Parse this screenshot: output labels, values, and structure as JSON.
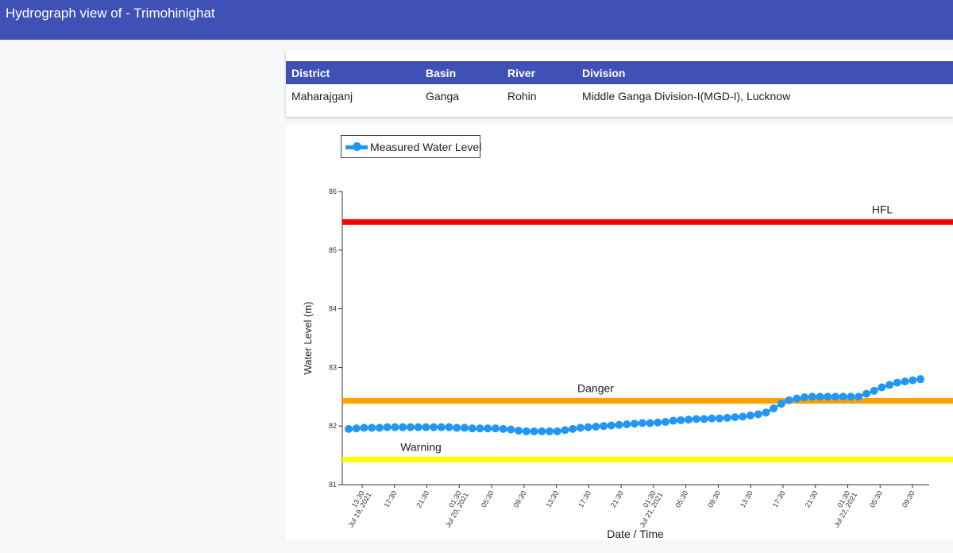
{
  "header": {
    "title": "Hydrograph view of - Trimohinighat"
  },
  "info_table": {
    "columns": [
      "District",
      "Basin",
      "River",
      "Division"
    ],
    "row": [
      "Maharajganj",
      "Ganga",
      "Rohin",
      "Middle Ganga Division-I(MGD-I), Lucknow"
    ]
  },
  "legend": {
    "label": "Measured Water Level"
  },
  "chart_data": {
    "type": "line",
    "ylabel": "Water Level (m)",
    "xlabel": "Date / Time",
    "ylim": [
      81,
      86
    ],
    "yticks": [
      81,
      82,
      83,
      84,
      85,
      86
    ],
    "xticks": [
      {
        "time": "13:30",
        "date": "Jul 19, 2021"
      },
      {
        "time": "17:30",
        "date": ""
      },
      {
        "time": "21:30",
        "date": ""
      },
      {
        "time": "01:30",
        "date": "Jul 20, 2021"
      },
      {
        "time": "05:30",
        "date": ""
      },
      {
        "time": "09:30",
        "date": ""
      },
      {
        "time": "13:30",
        "date": ""
      },
      {
        "time": "17:30",
        "date": ""
      },
      {
        "time": "21:30",
        "date": ""
      },
      {
        "time": "01:30",
        "date": "Jul 21, 2021"
      },
      {
        "time": "05:30",
        "date": ""
      },
      {
        "time": "09:30",
        "date": ""
      },
      {
        "time": "13:30",
        "date": ""
      },
      {
        "time": "17:30",
        "date": ""
      },
      {
        "time": "21:30",
        "date": ""
      },
      {
        "time": "01:30",
        "date": "Jul 22, 2021"
      },
      {
        "time": "05:30",
        "date": ""
      },
      {
        "time": "09:30",
        "date": ""
      }
    ],
    "series": [
      {
        "name": "Measured Water Level",
        "color": "#2196f3",
        "values": [
          81.95,
          81.96,
          81.97,
          81.97,
          81.97,
          81.98,
          81.98,
          81.98,
          81.98,
          81.98,
          81.98,
          81.98,
          81.98,
          81.98,
          81.97,
          81.97,
          81.96,
          81.96,
          81.96,
          81.96,
          81.95,
          81.94,
          81.92,
          81.91,
          81.91,
          81.91,
          81.91,
          81.91,
          81.93,
          81.95,
          81.97,
          81.98,
          81.99,
          82.0,
          82.01,
          82.02,
          82.03,
          82.04,
          82.05,
          82.05,
          82.06,
          82.07,
          82.09,
          82.1,
          82.11,
          82.12,
          82.12,
          82.13,
          82.13,
          82.14,
          82.15,
          82.16,
          82.18,
          82.2,
          82.23,
          82.3,
          82.38,
          82.44,
          82.47,
          82.49,
          82.5,
          82.5,
          82.5,
          82.5,
          82.5,
          82.5,
          82.5,
          82.55,
          82.6,
          82.66,
          82.7,
          82.74,
          82.76,
          82.78,
          82.8
        ]
      }
    ],
    "reference_lines": [
      {
        "name": "HFL",
        "value": 85.48,
        "color": "#ff0000"
      },
      {
        "name": "Danger",
        "value": 82.43,
        "color": "#ffa000"
      },
      {
        "name": "Warning",
        "value": 81.43,
        "color": "#ffff00"
      }
    ],
    "grid": false,
    "legend_position": "top-left"
  }
}
